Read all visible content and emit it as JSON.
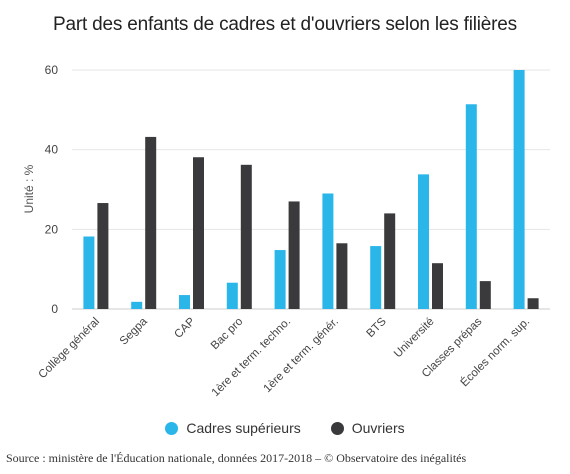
{
  "chart_data": {
    "type": "bar",
    "title": "Part des enfants de cadres et d'ouvriers selon les filières",
    "xlabel": "",
    "ylabel": "Unité : %",
    "ylim": [
      0,
      60
    ],
    "yticks": [
      0,
      20,
      40,
      60
    ],
    "grid": true,
    "legend_position": "bottom",
    "categories": [
      "Collège général",
      "Segpa",
      "CAP",
      "Bac pro",
      "1ère et term. techno.",
      "1ère et term. génér.",
      "BTS",
      "Université",
      "Classes prépas",
      "Écoles norm. sup."
    ],
    "series": [
      {
        "name": "Cadres supérieurs",
        "color": "#2bb6e9",
        "values": [
          18.2,
          1.8,
          3.5,
          6.6,
          14.8,
          29.0,
          15.8,
          33.8,
          51.4,
          60.0
        ]
      },
      {
        "name": "Ouvriers",
        "color": "#3a3a3c",
        "values": [
          26.6,
          43.2,
          38.1,
          36.2,
          27.0,
          16.5,
          24.0,
          11.5,
          7.0,
          2.7
        ]
      }
    ],
    "source": "Source : ministère de l'Éducation nationale, données 2017-2018 – © Observatoire des inégalités"
  }
}
